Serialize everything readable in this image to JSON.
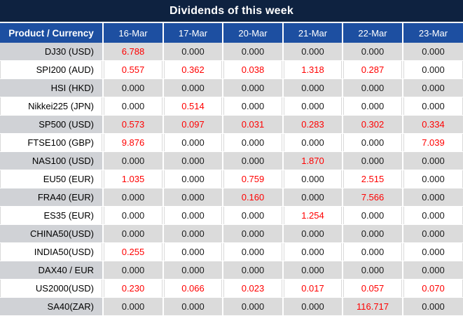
{
  "title": "Dividends of this week",
  "colors": {
    "title_bg": "#0e2240",
    "header_bg": "#1d4fa1",
    "stripe_label_bg": "#d0d2d6",
    "stripe_value_bg": "#dbdbdb",
    "value_red": "#ff0000",
    "value_black": "#1a1a1a"
  },
  "table": {
    "label_header": "Product / Currency",
    "date_headers": [
      "16-Mar",
      "17-Mar",
      "20-Mar",
      "21-Mar",
      "22-Mar",
      "23-Mar"
    ],
    "rows": [
      {
        "product": "DJ30 (USD)",
        "values": [
          "6.788",
          "0.000",
          "0.000",
          "0.000",
          "0.000",
          "0.000"
        ],
        "red": [
          true,
          false,
          false,
          false,
          false,
          false
        ]
      },
      {
        "product": "SPI200 (AUD)",
        "values": [
          "0.557",
          "0.362",
          "0.038",
          "1.318",
          "0.287",
          "0.000"
        ],
        "red": [
          true,
          true,
          true,
          true,
          true,
          false
        ]
      },
      {
        "product": "HSI (HKD)",
        "values": [
          "0.000",
          "0.000",
          "0.000",
          "0.000",
          "0.000",
          "0.000"
        ],
        "red": [
          false,
          false,
          false,
          false,
          false,
          false
        ]
      },
      {
        "product": "Nikkei225 (JPN)",
        "values": [
          "0.000",
          "0.514",
          "0.000",
          "0.000",
          "0.000",
          "0.000"
        ],
        "red": [
          false,
          true,
          false,
          false,
          false,
          false
        ]
      },
      {
        "product": "SP500 (USD)",
        "values": [
          "0.573",
          "0.097",
          "0.031",
          "0.283",
          "0.302",
          "0.334"
        ],
        "red": [
          true,
          true,
          true,
          true,
          true,
          true
        ]
      },
      {
        "product": "FTSE100 (GBP)",
        "values": [
          "9.876",
          "0.000",
          "0.000",
          "0.000",
          "0.000",
          "7.039"
        ],
        "red": [
          true,
          false,
          false,
          false,
          false,
          true
        ]
      },
      {
        "product": "NAS100 (USD)",
        "values": [
          "0.000",
          "0.000",
          "0.000",
          "1.870",
          "0.000",
          "0.000"
        ],
        "red": [
          false,
          false,
          false,
          true,
          false,
          false
        ]
      },
      {
        "product": "EU50 (EUR)",
        "values": [
          "1.035",
          "0.000",
          "0.759",
          "0.000",
          "2.515",
          "0.000"
        ],
        "red": [
          true,
          false,
          true,
          false,
          true,
          false
        ]
      },
      {
        "product": "FRA40 (EUR)",
        "values": [
          "0.000",
          "0.000",
          "0.160",
          "0.000",
          "7.566",
          "0.000"
        ],
        "red": [
          false,
          false,
          true,
          false,
          true,
          false
        ]
      },
      {
        "product": "ES35 (EUR)",
        "values": [
          "0.000",
          "0.000",
          "0.000",
          "1.254",
          "0.000",
          "0.000"
        ],
        "red": [
          false,
          false,
          false,
          true,
          false,
          false
        ]
      },
      {
        "product": "CHINA50(USD)",
        "values": [
          "0.000",
          "0.000",
          "0.000",
          "0.000",
          "0.000",
          "0.000"
        ],
        "red": [
          false,
          false,
          false,
          false,
          false,
          false
        ]
      },
      {
        "product": "INDIA50(USD)",
        "values": [
          "0.255",
          "0.000",
          "0.000",
          "0.000",
          "0.000",
          "0.000"
        ],
        "red": [
          true,
          false,
          false,
          false,
          false,
          false
        ]
      },
      {
        "product": "DAX40 / EUR",
        "values": [
          "0.000",
          "0.000",
          "0.000",
          "0.000",
          "0.000",
          "0.000"
        ],
        "red": [
          false,
          false,
          false,
          false,
          false,
          false
        ]
      },
      {
        "product": "US2000(USD)",
        "values": [
          "0.230",
          "0.066",
          "0.023",
          "0.017",
          "0.057",
          "0.070"
        ],
        "red": [
          true,
          true,
          true,
          true,
          true,
          true
        ]
      },
      {
        "product": "SA40(ZAR)",
        "values": [
          "0.000",
          "0.000",
          "0.000",
          "0.000",
          "116.717",
          "0.000"
        ],
        "red": [
          false,
          false,
          false,
          false,
          true,
          false
        ]
      }
    ]
  }
}
